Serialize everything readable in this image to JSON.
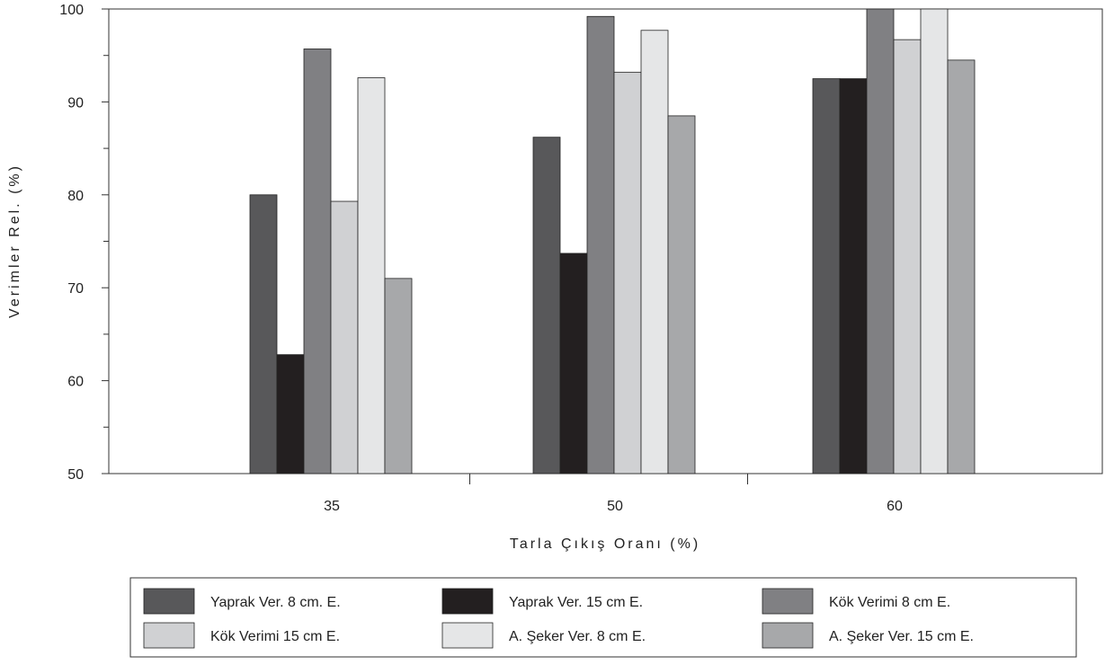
{
  "chart_data": {
    "type": "bar",
    "title": "",
    "xlabel": "Tarla Çıkış Oranı (%)",
    "ylabel": "Verimler Rel. (%)",
    "categories": [
      "35",
      "50",
      "60"
    ],
    "ylim": [
      50,
      100
    ],
    "yticks": [
      "50",
      "60",
      "70",
      "80",
      "90",
      "100"
    ],
    "grid": false,
    "legend_position": "bottom",
    "series": [
      {
        "name": "Yaprak Ver. 8 cm. E.",
        "color": "#58585a",
        "values": [
          80,
          86.2,
          92.5
        ]
      },
      {
        "name": "Yaprak Ver. 15 cm E.",
        "color": "#231f20",
        "values": [
          62.8,
          73.7,
          92.5
        ]
      },
      {
        "name": "Kök Verimi 8 cm E.",
        "color": "#808083",
        "values": [
          95.7,
          99.2,
          100
        ]
      },
      {
        "name": "Kök Verimi 15 cm E.",
        "color": "#d0d1d3",
        "values": [
          79.3,
          93.2,
          96.7
        ]
      },
      {
        "name": "A. Şeker Ver. 8 cm E.",
        "color": "#e5e6e7",
        "values": [
          92.6,
          97.7,
          100
        ]
      },
      {
        "name": "A. Şeker Ver. 15 cm E.",
        "color": "#a7a8aa",
        "values": [
          71,
          88.5,
          94.5
        ]
      }
    ]
  }
}
